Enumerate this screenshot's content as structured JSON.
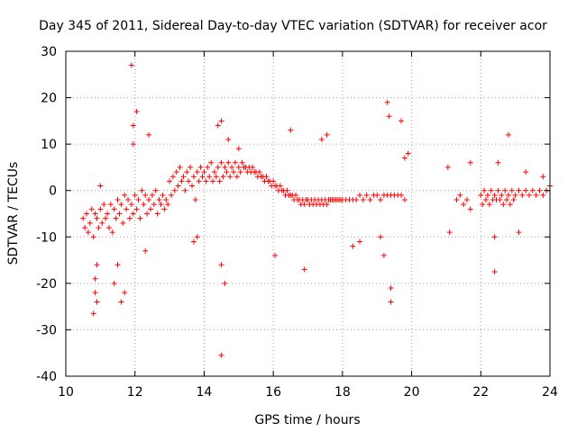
{
  "chart_data": {
    "type": "scatter",
    "title": "Day 345 of 2011, Sidereal Day-to-day VTEC variation (SDTVAR) for receiver acor",
    "xlabel": "GPS time / hours",
    "ylabel": "SDTVAR / TECUs",
    "xlim": [
      10,
      24
    ],
    "ylim": [
      -40,
      30
    ],
    "x_ticks": [
      10,
      12,
      14,
      16,
      18,
      20,
      22,
      24
    ],
    "y_ticks": [
      -40,
      -30,
      -20,
      -10,
      0,
      10,
      20,
      30
    ],
    "grid": true,
    "marker": "+",
    "color": "#ff0000",
    "series": [
      {
        "name": "SDTVAR",
        "points": [
          [
            10.5,
            -6
          ],
          [
            10.55,
            -8
          ],
          [
            10.6,
            -5
          ],
          [
            10.65,
            -9
          ],
          [
            10.7,
            -7
          ],
          [
            10.75,
            -4
          ],
          [
            10.8,
            -10
          ],
          [
            10.85,
            -5
          ],
          [
            10.9,
            -6
          ],
          [
            10.95,
            -8
          ],
          [
            11.0,
            -4
          ],
          [
            11.05,
            -7
          ],
          [
            11.1,
            -3
          ],
          [
            11.15,
            -6
          ],
          [
            11.2,
            -5
          ],
          [
            11.25,
            -8
          ],
          [
            11.3,
            -3
          ],
          [
            11.35,
            -9
          ],
          [
            11.4,
            -4
          ],
          [
            11.45,
            -6
          ],
          [
            11.5,
            -2
          ],
          [
            11.55,
            -5
          ],
          [
            11.6,
            -3
          ],
          [
            11.65,
            -7
          ],
          [
            11.7,
            -1
          ],
          [
            11.75,
            -4
          ],
          [
            11.8,
            -2
          ],
          [
            11.85,
            -6
          ],
          [
            11.9,
            -3
          ],
          [
            11.95,
            -5
          ],
          [
            12.0,
            -1
          ],
          [
            12.05,
            -4
          ],
          [
            12.1,
            -2
          ],
          [
            12.15,
            -6
          ],
          [
            12.2,
            0
          ],
          [
            12.25,
            -3
          ],
          [
            12.3,
            -1
          ],
          [
            12.35,
            -5
          ],
          [
            12.4,
            -2
          ],
          [
            12.45,
            -4
          ],
          [
            12.5,
            -1
          ],
          [
            12.55,
            -3
          ],
          [
            12.6,
            0
          ],
          [
            12.65,
            -5
          ],
          [
            12.7,
            -2
          ],
          [
            12.75,
            -3
          ],
          [
            12.8,
            -1
          ],
          [
            12.85,
            -4
          ],
          [
            12.9,
            -2
          ],
          [
            12.95,
            -3
          ],
          [
            13.0,
            2
          ],
          [
            13.05,
            -1
          ],
          [
            13.1,
            3
          ],
          [
            13.15,
            0
          ],
          [
            13.2,
            4
          ],
          [
            13.25,
            1
          ],
          [
            13.3,
            5
          ],
          [
            13.35,
            2
          ],
          [
            13.4,
            3
          ],
          [
            13.45,
            0
          ],
          [
            13.5,
            4
          ],
          [
            13.55,
            2
          ],
          [
            13.6,
            5
          ],
          [
            13.65,
            1
          ],
          [
            13.7,
            3
          ],
          [
            13.75,
            -2
          ],
          [
            13.8,
            4
          ],
          [
            13.85,
            2
          ],
          [
            13.9,
            5
          ],
          [
            13.95,
            3
          ],
          [
            14.0,
            4
          ],
          [
            14.05,
            2
          ],
          [
            14.1,
            5
          ],
          [
            14.15,
            3
          ],
          [
            14.2,
            6
          ],
          [
            14.25,
            2
          ],
          [
            14.3,
            4
          ],
          [
            14.35,
            3
          ],
          [
            14.4,
            5
          ],
          [
            14.45,
            2
          ],
          [
            14.5,
            6
          ],
          [
            14.55,
            3
          ],
          [
            14.6,
            5
          ],
          [
            14.65,
            4
          ],
          [
            14.7,
            6
          ],
          [
            14.75,
            3
          ],
          [
            14.8,
            5
          ],
          [
            14.85,
            4
          ],
          [
            14.9,
            6
          ],
          [
            14.95,
            3
          ],
          [
            15.0,
            5
          ],
          [
            15.05,
            4
          ],
          [
            15.1,
            6
          ],
          [
            15.15,
            5
          ],
          [
            15.2,
            5
          ],
          [
            15.25,
            4
          ],
          [
            15.3,
            5
          ],
          [
            15.35,
            4
          ],
          [
            15.4,
            5
          ],
          [
            15.45,
            4
          ],
          [
            15.5,
            4
          ],
          [
            15.55,
            3
          ],
          [
            15.6,
            4
          ],
          [
            15.65,
            3
          ],
          [
            15.7,
            3
          ],
          [
            15.75,
            2
          ],
          [
            15.8,
            3
          ],
          [
            15.85,
            2
          ],
          [
            15.9,
            2
          ],
          [
            15.95,
            1
          ],
          [
            16.0,
            2
          ],
          [
            16.05,
            1
          ],
          [
            16.1,
            1
          ],
          [
            16.15,
            0
          ],
          [
            16.2,
            1
          ],
          [
            16.25,
            0
          ],
          [
            16.3,
            0
          ],
          [
            16.35,
            -1
          ],
          [
            16.4,
            0
          ],
          [
            16.45,
            -1
          ],
          [
            16.5,
            -1
          ],
          [
            16.55,
            -1
          ],
          [
            16.6,
            -2
          ],
          [
            16.65,
            -1
          ],
          [
            16.7,
            -2
          ],
          [
            16.75,
            -2
          ],
          [
            16.8,
            -3
          ],
          [
            16.85,
            -2
          ],
          [
            16.9,
            -3
          ],
          [
            16.95,
            -2
          ],
          [
            17.0,
            -2
          ],
          [
            17.05,
            -3
          ],
          [
            17.1,
            -2
          ],
          [
            17.15,
            -3
          ],
          [
            17.2,
            -2
          ],
          [
            17.25,
            -3
          ],
          [
            17.3,
            -2
          ],
          [
            17.35,
            -3
          ],
          [
            17.4,
            -2
          ],
          [
            17.45,
            -3
          ],
          [
            17.5,
            -2
          ],
          [
            17.55,
            -3
          ],
          [
            17.6,
            -2
          ],
          [
            17.65,
            -2
          ],
          [
            17.7,
            -2
          ],
          [
            17.75,
            -2
          ],
          [
            17.8,
            -2
          ],
          [
            17.85,
            -2
          ],
          [
            17.9,
            -2
          ],
          [
            17.95,
            -2
          ],
          [
            18.0,
            -2
          ],
          [
            18.1,
            -2
          ],
          [
            18.2,
            -2
          ],
          [
            18.3,
            -2
          ],
          [
            18.4,
            -2
          ],
          [
            18.5,
            -1
          ],
          [
            18.6,
            -2
          ],
          [
            18.7,
            -1
          ],
          [
            18.8,
            -2
          ],
          [
            18.9,
            -1
          ],
          [
            19.0,
            -1
          ],
          [
            19.1,
            -2
          ],
          [
            19.2,
            -1
          ],
          [
            19.3,
            -1
          ],
          [
            19.4,
            -1
          ],
          [
            19.5,
            -1
          ],
          [
            19.6,
            -1
          ],
          [
            19.7,
            -1
          ],
          [
            19.8,
            -2
          ],
          [
            21.3,
            -2
          ],
          [
            21.4,
            -1
          ],
          [
            21.5,
            -3
          ],
          [
            21.6,
            -2
          ],
          [
            21.7,
            -4
          ],
          [
            22.0,
            -1
          ],
          [
            22.05,
            -3
          ],
          [
            22.1,
            0
          ],
          [
            22.15,
            -2
          ],
          [
            22.2,
            -1
          ],
          [
            22.25,
            -3
          ],
          [
            22.3,
            0
          ],
          [
            22.35,
            -2
          ],
          [
            22.4,
            -1
          ],
          [
            22.45,
            -2
          ],
          [
            22.5,
            0
          ],
          [
            22.55,
            -2
          ],
          [
            22.6,
            -1
          ],
          [
            22.65,
            -3
          ],
          [
            22.7,
            0
          ],
          [
            22.75,
            -2
          ],
          [
            22.8,
            -1
          ],
          [
            22.85,
            -3
          ],
          [
            22.9,
            0
          ],
          [
            22.95,
            -2
          ],
          [
            23.0,
            -1
          ],
          [
            23.1,
            0
          ],
          [
            23.2,
            -1
          ],
          [
            23.3,
            0
          ],
          [
            23.4,
            -1
          ],
          [
            23.5,
            0
          ],
          [
            23.6,
            -1
          ],
          [
            23.7,
            0
          ],
          [
            23.8,
            -1
          ],
          [
            23.9,
            0
          ],
          [
            10.85,
            -22
          ],
          [
            10.8,
            -26.5
          ],
          [
            10.9,
            -24
          ],
          [
            10.85,
            -19
          ],
          [
            10.9,
            -16
          ],
          [
            11.0,
            1
          ],
          [
            11.4,
            -20
          ],
          [
            11.5,
            -16
          ],
          [
            11.7,
            -22
          ],
          [
            11.6,
            -24
          ],
          [
            11.9,
            27
          ],
          [
            11.95,
            10
          ],
          [
            12.05,
            17
          ],
          [
            11.95,
            14
          ],
          [
            12.4,
            12
          ],
          [
            12.3,
            -13
          ],
          [
            13.8,
            -10
          ],
          [
            13.7,
            -11
          ],
          [
            14.4,
            14
          ],
          [
            14.5,
            15
          ],
          [
            14.5,
            -16
          ],
          [
            14.6,
            -20
          ],
          [
            14.5,
            -35.5
          ],
          [
            14.7,
            11
          ],
          [
            15.0,
            9
          ],
          [
            16.05,
            -14
          ],
          [
            16.5,
            13
          ],
          [
            16.9,
            -17
          ],
          [
            17.4,
            11
          ],
          [
            17.55,
            12
          ],
          [
            18.3,
            -12
          ],
          [
            18.5,
            -11
          ],
          [
            19.1,
            -10
          ],
          [
            19.2,
            -14
          ],
          [
            19.3,
            19
          ],
          [
            19.35,
            16
          ],
          [
            19.4,
            -21
          ],
          [
            19.4,
            -24
          ],
          [
            19.7,
            15
          ],
          [
            19.8,
            7
          ],
          [
            19.9,
            8
          ],
          [
            21.1,
            -9
          ],
          [
            21.05,
            5
          ],
          [
            21.7,
            6
          ],
          [
            22.4,
            -17.5
          ],
          [
            22.4,
            -10
          ],
          [
            22.5,
            6
          ],
          [
            22.8,
            12
          ],
          [
            23.1,
            -9
          ],
          [
            23.3,
            4
          ],
          [
            23.8,
            3
          ],
          [
            24.0,
            1
          ]
        ]
      }
    ]
  }
}
